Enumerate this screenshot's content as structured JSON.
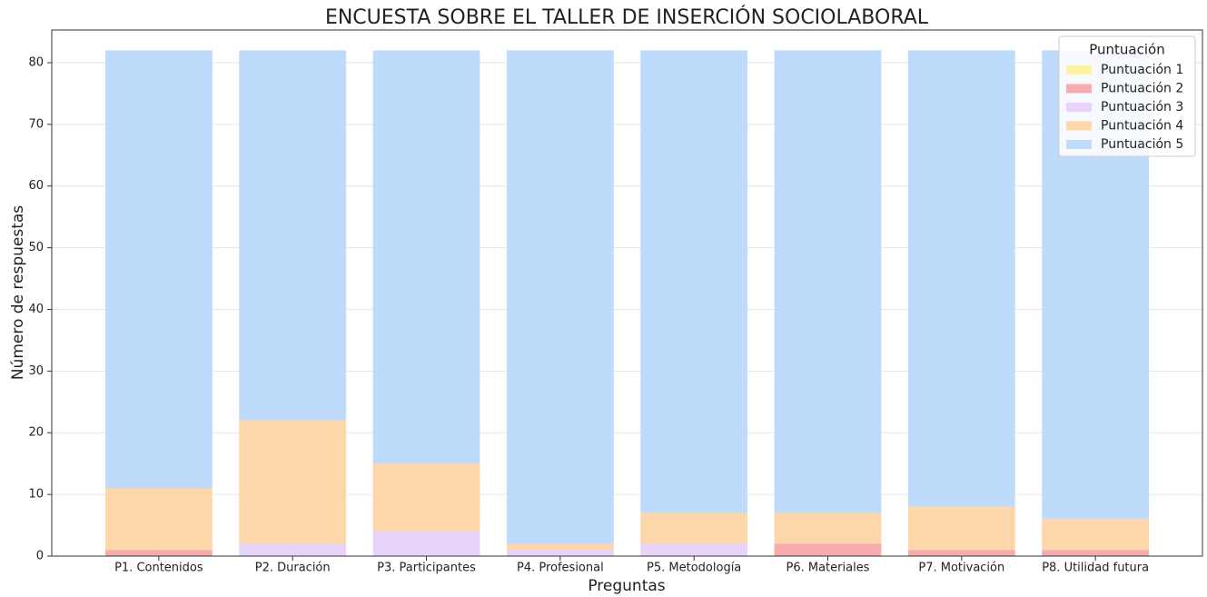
{
  "chart_data": {
    "type": "stacked_bar",
    "title": "ENCUESTA SOBRE EL TALLER DE INSERCIÓN SOCIOLABORAL",
    "x_label": "Preguntas",
    "y_label": "Número de respuestas",
    "categories": [
      "P1. Contenidos",
      "P2. Duración",
      "P3. Participantes",
      "P4. Profesional",
      "P5. Metodología",
      "P6. Materiales",
      "P7. Motivación",
      "P8. Utilidad futura"
    ],
    "series": [
      {
        "name": "Puntuación 1",
        "color": "#fff3a3",
        "values": [
          0,
          0,
          0,
          0,
          0,
          0,
          0,
          0
        ]
      },
      {
        "name": "Puntuación 2",
        "color": "#f6acac",
        "values": [
          1,
          0,
          0,
          0,
          0,
          2,
          1,
          1
        ]
      },
      {
        "name": "Puntuación 3",
        "color": "#e8d3fb",
        "values": [
          0,
          2,
          4,
          1,
          2,
          0,
          0,
          0
        ]
      },
      {
        "name": "Puntuación 4",
        "color": "#fdd6aa",
        "values": [
          10,
          20,
          11,
          1,
          5,
          5,
          7,
          5
        ]
      },
      {
        "name": "Puntuación 5",
        "color": "#bfdbfb",
        "values": [
          71,
          60,
          67,
          80,
          75,
          75,
          74,
          76
        ]
      }
    ],
    "legend_title": "Puntuación",
    "legend": "upper right",
    "ylim": [
      0,
      85.3
    ],
    "yticks": [
      0,
      10,
      20,
      30,
      40,
      50,
      60,
      70,
      80
    ],
    "grid": true
  }
}
